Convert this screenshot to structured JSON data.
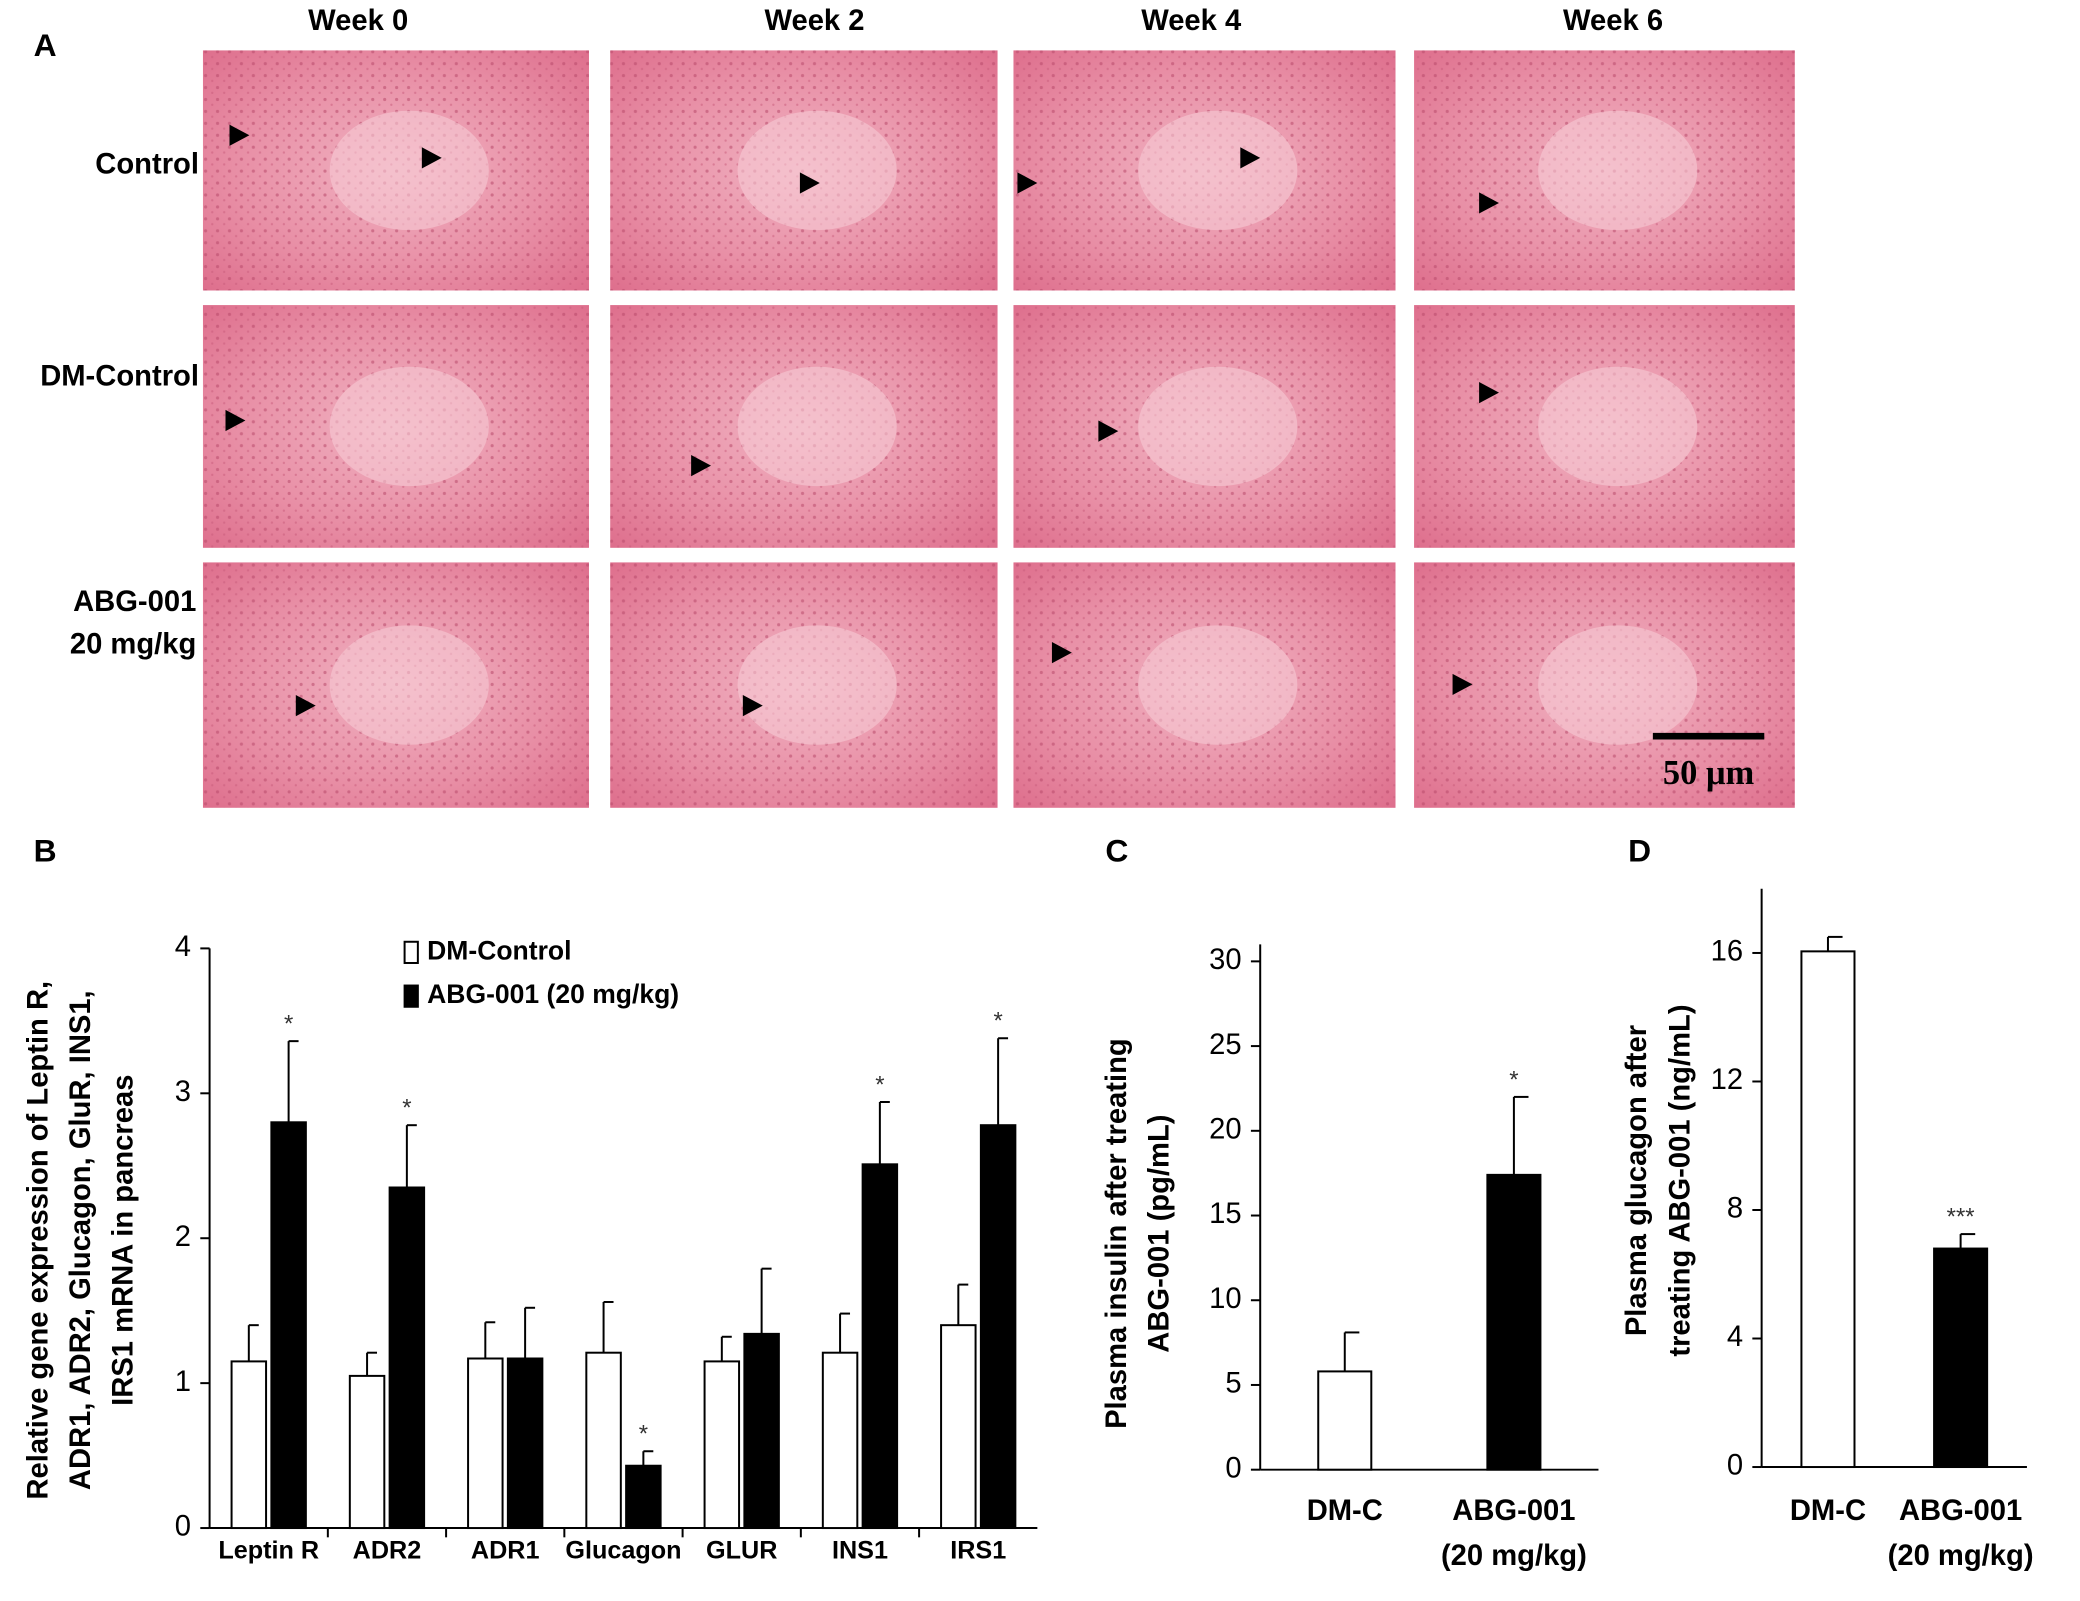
{
  "panel_labels": [
    "A",
    "B",
    "C",
    "D"
  ],
  "panel_a": {
    "columns": [
      "Week 0",
      "Week 2",
      "Week 4",
      "Week 6"
    ],
    "rows": [
      [
        "Control"
      ],
      [
        "DM-Control"
      ],
      [
        "ABG-001",
        "20 mg/kg"
      ]
    ],
    "scale_bar": "50 μm"
  },
  "chart_data": [
    {
      "type": "bar",
      "ylabel": [
        "Relative gene expression of Leptin R,",
        "ADR1, ADR2, Glucagon, GluR, INS1,",
        "IRS1 mRNA in pancreas"
      ],
      "categories": [
        [
          "Leptin R"
        ],
        [
          "ADR2"
        ],
        [
          "ADR1"
        ],
        [
          "Glucagon"
        ],
        [
          "GLUR"
        ],
        [
          "INS1"
        ],
        [
          "IRS1"
        ]
      ],
      "series": [
        {
          "name": "DM-Control",
          "color": "#ffffff",
          "values": [
            1.15,
            1.05,
            1.17,
            1.21,
            1.15,
            1.21,
            1.4
          ],
          "errors": [
            0.25,
            0.16,
            0.25,
            0.35,
            0.17,
            0.27,
            0.28
          ]
        },
        {
          "name": "ABG-001 (20 mg/kg)",
          "color": "#000000",
          "values": [
            2.8,
            2.35,
            1.17,
            0.43,
            1.34,
            2.51,
            2.78
          ],
          "errors": [
            0.56,
            0.43,
            0.35,
            0.1,
            0.45,
            0.43,
            0.6
          ],
          "significance": [
            "*",
            "*",
            null,
            "*",
            null,
            "*",
            "*"
          ]
        }
      ],
      "ylim": [
        0,
        4
      ],
      "yticks": [
        0,
        1,
        2,
        3,
        4
      ]
    },
    {
      "type": "bar",
      "ylabel": [
        "Plasma insulin after treating",
        "ABG-001  (pg/mL)"
      ],
      "categories": [
        [
          "DM-C"
        ],
        [
          "ABG-001",
          "(20 mg/kg)"
        ]
      ],
      "values": [
        5.8,
        17.4
      ],
      "errors": [
        2.3,
        4.6
      ],
      "colors": [
        "#ffffff",
        "#000000"
      ],
      "significance": [
        null,
        "*"
      ],
      "ylim": [
        0,
        31
      ],
      "yticks": [
        0,
        5,
        10,
        15,
        20,
        25,
        30
      ]
    },
    {
      "type": "bar",
      "ylabel": [
        "Plasma glucagon after",
        "treating ABG-001  (ng/mL)"
      ],
      "categories": [
        [
          "DM-C"
        ],
        [
          "ABG-001",
          "(20 mg/kg)"
        ]
      ],
      "values": [
        16.05,
        6.8
      ],
      "errors": [
        0.45,
        0.45
      ],
      "colors": [
        "#ffffff",
        "#000000"
      ],
      "significance": [
        null,
        "***"
      ],
      "ylim": [
        0,
        18
      ],
      "yticks": [
        0,
        4,
        8,
        12,
        16
      ]
    }
  ]
}
